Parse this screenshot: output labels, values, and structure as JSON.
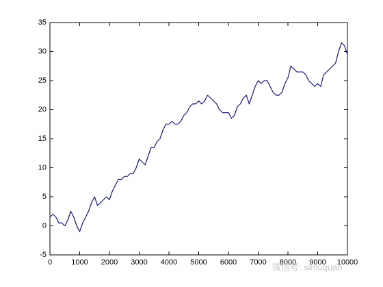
{
  "chart_data": {
    "type": "line",
    "x": [
      0,
      100,
      200,
      300,
      400,
      500,
      600,
      700,
      800,
      900,
      1000,
      1100,
      1200,
      1300,
      1400,
      1500,
      1600,
      1700,
      1800,
      1900,
      2000,
      2100,
      2200,
      2300,
      2400,
      2500,
      2600,
      2700,
      2800,
      2900,
      3000,
      3100,
      3200,
      3300,
      3400,
      3500,
      3600,
      3700,
      3800,
      3900,
      4000,
      4100,
      4200,
      4300,
      4400,
      4500,
      4600,
      4700,
      4800,
      4900,
      5000,
      5100,
      5200,
      5300,
      5400,
      5500,
      5600,
      5700,
      5800,
      5900,
      6000,
      6100,
      6200,
      6300,
      6400,
      6500,
      6600,
      6700,
      6800,
      6900,
      7000,
      7100,
      7200,
      7300,
      7400,
      7500,
      7600,
      7700,
      7800,
      7900,
      8000,
      8100,
      8200,
      8300,
      8400,
      8500,
      8600,
      8700,
      8800,
      8900,
      9000,
      9100,
      9200,
      9300,
      9400,
      9500,
      9600,
      9700,
      9800,
      9900,
      10000
    ],
    "series": [
      {
        "color": "#14147a",
        "values": [
          1.5,
          2,
          1.5,
          0.5,
          0.5,
          0,
          1,
          2.5,
          1.5,
          0,
          -1,
          0.5,
          1.5,
          2.5,
          4,
          5,
          3.5,
          4,
          4.5,
          5,
          4.5,
          6,
          7,
          8,
          8,
          8.5,
          8.5,
          9,
          9,
          10,
          11.5,
          11,
          10.5,
          12,
          13.5,
          13.5,
          14.5,
          15,
          16.5,
          17.5,
          17.5,
          18,
          17.5,
          17.5,
          18,
          19,
          19.5,
          20.5,
          21,
          21,
          21.5,
          21,
          21.5,
          22.5,
          22,
          21.5,
          21,
          20,
          19.5,
          19.5,
          19.5,
          18.5,
          19,
          20.5,
          21,
          22,
          22.5,
          21,
          22.5,
          24,
          25,
          24.5,
          25,
          25,
          24,
          23,
          22.5,
          22.5,
          23,
          24.5,
          25.5,
          27.5,
          27,
          26.5,
          26.5,
          26.5,
          26,
          25,
          24.5,
          24,
          24.5,
          24,
          26,
          26.5,
          27,
          27.5,
          28,
          30,
          31.5,
          31,
          29.5
        ]
      }
    ],
    "xlim": [
      0,
      10000
    ],
    "xticks": [
      0,
      1000,
      2000,
      3000,
      4000,
      5000,
      6000,
      7000,
      8000,
      9000,
      10000
    ],
    "ylim": [
      -5,
      35
    ],
    "yticks": [
      -5,
      0,
      5,
      10,
      15,
      20,
      25,
      30,
      35
    ],
    "watermark": "微信号: simuquan"
  }
}
